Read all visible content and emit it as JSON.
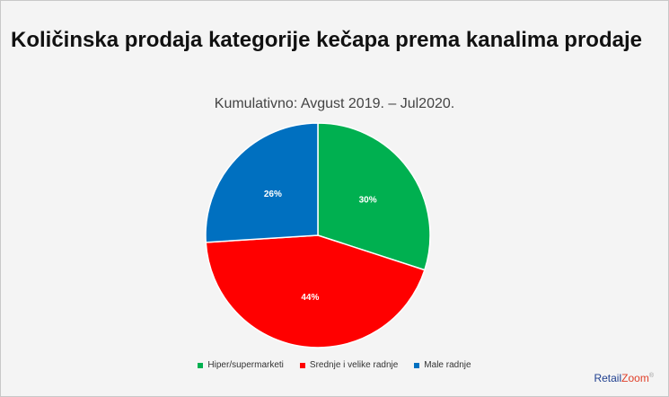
{
  "slide": {
    "title": "Količinska prodaja kategorije kečapa prema kanalima prodaje"
  },
  "chart_data": {
    "type": "pie",
    "title": "",
    "subtitle": "Kumulativno: Avgust 2019. – Jul2020.",
    "categories": [
      "Hiper/supermarketi",
      "Srednje i velike radnje",
      "Male radnje"
    ],
    "values": [
      30,
      44,
      26
    ],
    "value_labels": [
      "30%",
      "44%",
      "26%"
    ],
    "colors": [
      "#00b050",
      "#ff0000",
      "#0070c0"
    ],
    "start_angle": "12 o'clock",
    "direction": "clockwise",
    "legend_position": "bottom"
  },
  "brand": {
    "logo_retail": "Retail",
    "logo_zoom": "Zoom",
    "logo_mark": "®"
  }
}
